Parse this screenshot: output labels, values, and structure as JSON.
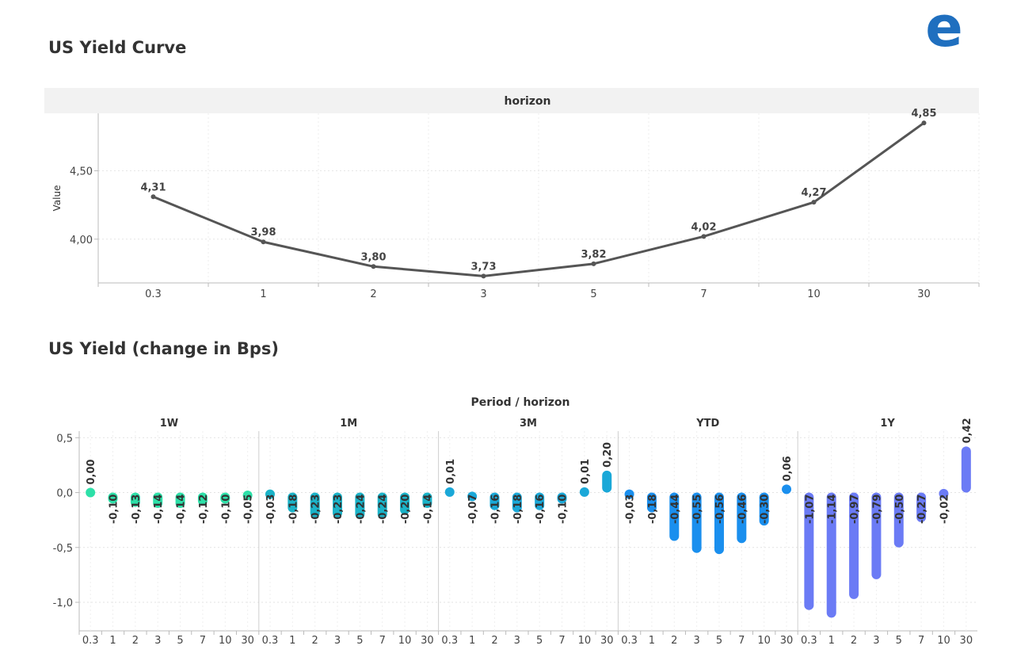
{
  "page": {
    "chart1_title": "US Yield Curve",
    "chart2_title": "US Yield (change in Bps)",
    "logo_letter": "e"
  },
  "colors": {
    "line": "#555555",
    "panel_header_bg": "#f2f2f2",
    "logo": "#1f6fbf",
    "period_1W": "#2de0a8",
    "period_1M": "#1ab3c8",
    "period_3M": "#1aa8d8",
    "period_YTD": "#1a8fee",
    "period_1Y": "#6b7bf5"
  },
  "chart_data": [
    {
      "type": "line",
      "title": "US Yield Curve",
      "panel_header": "horizon",
      "xlabel": "",
      "ylabel": "Value",
      "categories": [
        "0.3",
        "1",
        "2",
        "3",
        "5",
        "7",
        "10",
        "30"
      ],
      "values": [
        4.31,
        3.98,
        3.8,
        3.73,
        3.82,
        4.02,
        4.27,
        4.85
      ],
      "data_labels": [
        "4,31",
        "3,98",
        "3,80",
        "3,73",
        "3,82",
        "4,02",
        "4,27",
        "4,85"
      ],
      "yticks": [
        4.0,
        4.5
      ],
      "ytick_labels": [
        "4,00",
        "4,50"
      ],
      "ylim": [
        3.68,
        4.92
      ],
      "grid": true
    },
    {
      "type": "bar",
      "title": "US Yield (change in Bps)",
      "header": "Period  /  horizon",
      "categories": [
        "0.3",
        "1",
        "2",
        "3",
        "5",
        "7",
        "10",
        "30"
      ],
      "yticks": [
        0.5,
        0.0,
        -0.5,
        -1.0
      ],
      "ytick_labels": [
        "0,5",
        "0,0",
        "-0,5",
        "-1,0"
      ],
      "ylim": [
        -1.26,
        0.56
      ],
      "grid": true,
      "series": [
        {
          "name": "1W",
          "values": [
            0.0,
            -0.1,
            -0.13,
            -0.14,
            -0.14,
            -0.12,
            -0.1,
            -0.05
          ],
          "labels": [
            "0,00",
            "-0,10",
            "-0,13",
            "-0,14",
            "-0,14",
            "-0,12",
            "-0,10",
            "-0,05"
          ]
        },
        {
          "name": "1M",
          "values": [
            -0.03,
            -0.18,
            -0.23,
            -0.23,
            -0.24,
            -0.24,
            -0.2,
            -0.14
          ],
          "labels": [
            "-0,03",
            "-0,18",
            "-0,23",
            "-0,23",
            "-0,24",
            "-0,24",
            "-0,20",
            "-0,14"
          ]
        },
        {
          "name": "3M",
          "values": [
            0.01,
            -0.07,
            -0.16,
            -0.18,
            -0.16,
            -0.1,
            0.01,
            0.2
          ],
          "labels": [
            "0,01",
            "-0,07",
            "-0,16",
            "-0,18",
            "-0,16",
            "-0,10",
            "0,01",
            "0,20"
          ]
        },
        {
          "name": "YTD",
          "values": [
            -0.03,
            -0.18,
            -0.44,
            -0.55,
            -0.56,
            -0.46,
            -0.3,
            0.06
          ],
          "labels": [
            "-0,03",
            "-0,18",
            "-0,44",
            "-0,55",
            "-0,56",
            "-0,46",
            "-0,30",
            "0,06"
          ]
        },
        {
          "name": "1Y",
          "values": [
            -1.07,
            -1.14,
            -0.97,
            -0.79,
            -0.5,
            -0.27,
            -0.02,
            0.42
          ],
          "labels": [
            "-1,07",
            "-1,14",
            "-0,97",
            "-0,79",
            "-0,50",
            "-0,27",
            "-0,02",
            "0,42"
          ]
        }
      ]
    }
  ]
}
